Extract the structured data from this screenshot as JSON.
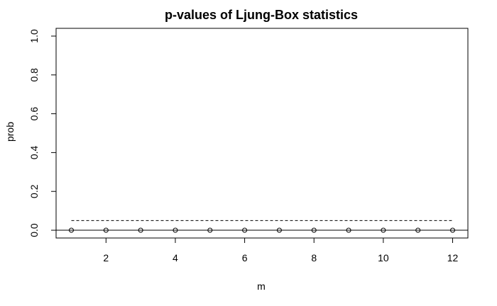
{
  "chart_data": {
    "type": "scatter",
    "title": "p-values of Ljung-Box statistics",
    "xlabel": "m",
    "ylabel": "prob",
    "xlim": [
      0.56,
      12.44
    ],
    "ylim": [
      -0.04,
      1.04
    ],
    "x_ticks": [
      2,
      4,
      6,
      8,
      10,
      12
    ],
    "y_ticks": [
      0.0,
      0.2,
      0.4,
      0.6,
      0.8,
      1.0
    ],
    "x_tick_labels": [
      "2",
      "4",
      "6",
      "8",
      "10",
      "12"
    ],
    "y_tick_labels": [
      "0.0",
      "0.2",
      "0.4",
      "0.6",
      "0.8",
      "1.0"
    ],
    "series": [
      {
        "x": [
          1,
          2,
          3,
          4,
          5,
          6,
          7,
          8,
          9,
          10,
          11,
          12
        ],
        "values": [
          0,
          0,
          0,
          0,
          0,
          0,
          0,
          0,
          0,
          0,
          0,
          0
        ],
        "marker": "open-circle"
      }
    ],
    "reference_lines": [
      {
        "y": 0,
        "style": "solid"
      },
      {
        "y": 0.05,
        "style": "dashed",
        "x_range": [
          1,
          12
        ]
      }
    ],
    "grid": false,
    "legend": "none"
  }
}
